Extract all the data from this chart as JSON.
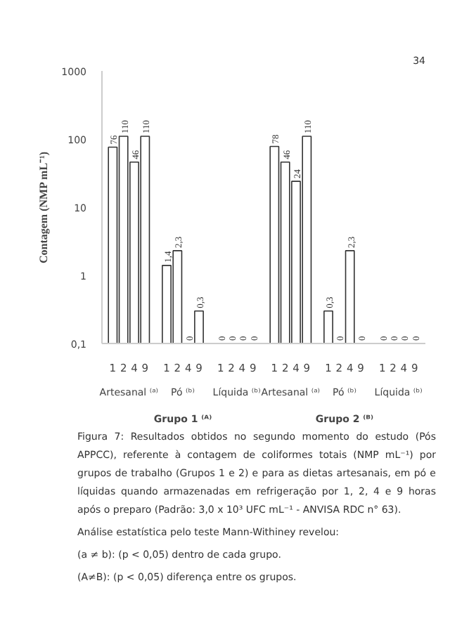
{
  "chart_data": {
    "type": "bar",
    "ylabel": "Contagem (NMP mL⁻¹)",
    "categories": [
      "1",
      "2",
      "4",
      "9",
      "1",
      "2",
      "4",
      "9",
      "1",
      "2",
      "4",
      "9",
      "1",
      "2",
      "4",
      "9",
      "1",
      "2",
      "4",
      "9",
      "1",
      "2",
      "4",
      "9"
    ],
    "values": [
      76,
      110,
      46,
      110,
      1.4,
      2.3,
      null,
      0.3,
      null,
      null,
      null,
      null,
      78,
      46,
      24,
      110,
      0.3,
      null,
      2.3,
      null,
      null,
      null,
      null,
      null
    ],
    "value_labels": [
      "76",
      "110",
      "46",
      "110",
      "1,4",
      "2,3",
      "0",
      "0,3",
      "0",
      "0",
      "0",
      "0",
      "78",
      "46",
      "24",
      "110",
      "0,3",
      "0",
      "2,3",
      "0",
      "0",
      "0",
      "0",
      "0"
    ],
    "color": "#ffffff",
    "log": true,
    "ylim": [
      0.1,
      1000
    ],
    "yticks": [
      {
        "value": 0.1,
        "label": "0,1"
      },
      1,
      10,
      100,
      1000
    ],
    "grid": false,
    "annotations": [
      "Artesanal ⁽ᵃ⁾",
      "Pó ⁽ᵇ⁾",
      "Líquida ⁽ᵇ⁾",
      "Artesanal ⁽ᵃ⁾",
      "Pó ⁽ᵇ⁾",
      "Líquida ⁽ᵇ⁾",
      "Grupo 1 ⁽ᴬ⁾",
      "Grupo 2 ⁽ᴮ⁾",
      "Figura 7: Resultados obtidos no segundo momento do estudo (Pós APPCC), referente à contagem de coliformes totais (NMP mL⁻¹) por grupos de trabalho (Grupos 1 e 2) e para as dietas artesanais, em pó e líquidas quando armazenadas em refrigeração por 1, 2, 4 e 9 horas após o preparo (Padrão: 3,0 x 10³ UFC mL⁻¹ - ANVISA RDC n° 63).",
      "Análise estatística pelo teste Mann-Withiney revelou:",
      "(a ≠ b): (p < 0,05) dentro de cada grupo.",
      "(A≠B): (p < 0,05) diferença entre os grupos.",
      "34"
    ]
  }
}
